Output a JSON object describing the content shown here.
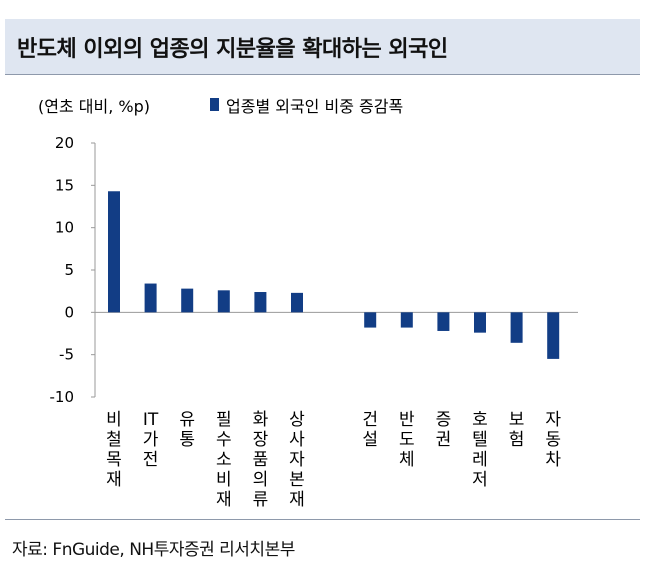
{
  "header": {
    "title": "반도체 이외의 업종의 지분율을 확대하는 외국인"
  },
  "source": "자료: FnGuide, NH투자증권 리서치본부",
  "colors": {
    "bar": "#123d85",
    "header_bg": "#dfe6f1"
  },
  "chart_data": {
    "type": "bar",
    "unit_label": "(연초 대비, %p)",
    "categories": [
      "비철목재",
      "IT가전",
      "유통",
      "필수소비재",
      "화장품의류",
      "상사자본재",
      "",
      "건설",
      "반도체",
      "증권",
      "호텔레저",
      "보험",
      "자동차"
    ],
    "series": [
      {
        "name": "업종별 외국인 비중 증감폭",
        "values": [
          14.3,
          3.4,
          2.8,
          2.6,
          2.4,
          2.3,
          null,
          -1.8,
          -1.8,
          -2.2,
          -2.4,
          -3.6,
          -5.5
        ]
      }
    ],
    "ylim": [
      -10,
      20
    ],
    "yticks": [
      20,
      15,
      10,
      5,
      0,
      -5,
      -10
    ],
    "legend_position": "top",
    "grid": false
  }
}
